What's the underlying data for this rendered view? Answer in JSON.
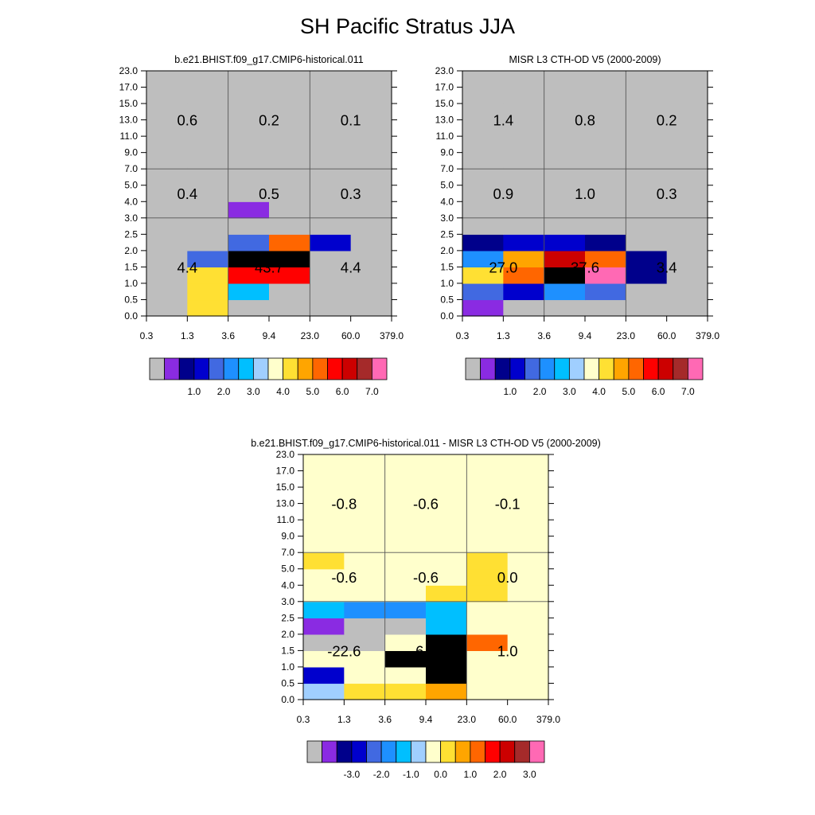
{
  "figure_title": "SH Pacific Stratus JJA",
  "chart_data": [
    {
      "type": "heatmap",
      "title": "b.e21.BHIST.f09_g17.CMIP6-historical.011",
      "x_tick_labels": [
        "0.3",
        "1.3",
        "3.6",
        "9.4",
        "23.0",
        "60.0",
        "379.0"
      ],
      "y_tick_labels": [
        "0.0",
        "0.5",
        "1.0",
        "1.5",
        "2.0",
        "2.5",
        "3.0",
        "4.0",
        "5.0",
        "7.0",
        "9.0",
        "11.0",
        "13.0",
        "15.0",
        "17.0",
        "23.0"
      ],
      "colorbar_labels": [
        "1.0",
        "2.0",
        "3.0",
        "4.0",
        "5.0",
        "6.0",
        "7.0"
      ],
      "color_bins": [
        [
          0,
          9,
          0,
          0,
          0,
          0
        ],
        [
          0,
          9,
          6,
          0,
          0,
          0
        ],
        [
          0,
          9,
          12,
          12,
          0,
          0
        ],
        [
          0,
          4,
          16,
          16,
          0,
          0
        ],
        [
          0,
          0,
          4,
          11,
          3,
          0
        ],
        [
          0,
          0,
          0,
          0,
          0,
          0
        ],
        [
          0,
          0,
          1,
          0,
          0,
          0
        ],
        [
          0,
          0,
          0,
          0,
          0,
          0
        ],
        [
          0,
          0,
          0,
          0,
          0,
          0
        ],
        [
          0,
          0,
          0,
          0,
          0,
          0
        ],
        [
          0,
          0,
          0,
          0,
          0,
          0
        ],
        [
          0,
          0,
          0,
          0,
          0,
          0
        ],
        [
          0,
          0,
          0,
          0,
          0,
          0
        ],
        [
          0,
          0,
          0,
          0,
          0,
          0
        ],
        [
          0,
          0,
          0,
          0,
          0,
          0
        ]
      ],
      "annotations": [
        {
          "x_range": [
            "0.3",
            "3.6"
          ],
          "y_range": [
            "7.0",
            "23.0"
          ],
          "text": "0.6"
        },
        {
          "x_range": [
            "3.6",
            "23.0"
          ],
          "y_range": [
            "7.0",
            "23.0"
          ],
          "text": "0.2"
        },
        {
          "x_range": [
            "23.0",
            "379.0"
          ],
          "y_range": [
            "7.0",
            "23.0"
          ],
          "text": "0.1"
        },
        {
          "x_range": [
            "0.3",
            "3.6"
          ],
          "y_range": [
            "3.0",
            "7.0"
          ],
          "text": "0.4"
        },
        {
          "x_range": [
            "3.6",
            "23.0"
          ],
          "y_range": [
            "3.0",
            "7.0"
          ],
          "text": "0.5"
        },
        {
          "x_range": [
            "23.0",
            "379.0"
          ],
          "y_range": [
            "3.0",
            "7.0"
          ],
          "text": "0.3"
        },
        {
          "x_range": [
            "0.3",
            "3.6"
          ],
          "y_range": [
            "0.0",
            "3.0"
          ],
          "text": "4.4"
        },
        {
          "x_range": [
            "3.6",
            "23.0"
          ],
          "y_range": [
            "0.0",
            "3.0"
          ],
          "text": "43.7"
        },
        {
          "x_range": [
            "23.0",
            "379.0"
          ],
          "y_range": [
            "0.0",
            "3.0"
          ],
          "text": "4.4"
        }
      ]
    },
    {
      "type": "heatmap",
      "title": "MISR L3 CTH-OD V5 (2000-2009)",
      "x_tick_labels": [
        "0.3",
        "1.3",
        "3.6",
        "9.4",
        "23.0",
        "60.0",
        "379.0"
      ],
      "y_tick_labels": [
        "0.0",
        "0.5",
        "1.0",
        "1.5",
        "2.0",
        "2.5",
        "3.0",
        "4.0",
        "5.0",
        "7.0",
        "9.0",
        "11.0",
        "13.0",
        "15.0",
        "17.0",
        "23.0"
      ],
      "colorbar_labels": [
        "1.0",
        "2.0",
        "3.0",
        "4.0",
        "5.0",
        "6.0",
        "7.0"
      ],
      "color_bins": [
        [
          1,
          0,
          0,
          0,
          0,
          0
        ],
        [
          4,
          3,
          5,
          4,
          0,
          0
        ],
        [
          9,
          11,
          16,
          15,
          2,
          0
        ],
        [
          5,
          10,
          13,
          11,
          2,
          0
        ],
        [
          2,
          3,
          3,
          2,
          0,
          0
        ],
        [
          0,
          0,
          0,
          0,
          0,
          0
        ],
        [
          0,
          0,
          0,
          0,
          0,
          0
        ],
        [
          0,
          0,
          0,
          0,
          0,
          0
        ],
        [
          0,
          0,
          0,
          0,
          0,
          0
        ],
        [
          0,
          0,
          0,
          0,
          0,
          0
        ],
        [
          0,
          0,
          0,
          0,
          0,
          0
        ],
        [
          0,
          0,
          0,
          0,
          0,
          0
        ],
        [
          0,
          0,
          0,
          0,
          0,
          0
        ],
        [
          0,
          0,
          0,
          0,
          0,
          0
        ],
        [
          0,
          0,
          0,
          0,
          0,
          0
        ]
      ],
      "annotations": [
        {
          "x_range": [
            "0.3",
            "3.6"
          ],
          "y_range": [
            "7.0",
            "23.0"
          ],
          "text": "1.4"
        },
        {
          "x_range": [
            "3.6",
            "23.0"
          ],
          "y_range": [
            "7.0",
            "23.0"
          ],
          "text": "0.8"
        },
        {
          "x_range": [
            "23.0",
            "379.0"
          ],
          "y_range": [
            "7.0",
            "23.0"
          ],
          "text": "0.2"
        },
        {
          "x_range": [
            "0.3",
            "3.6"
          ],
          "y_range": [
            "3.0",
            "7.0"
          ],
          "text": "0.9"
        },
        {
          "x_range": [
            "3.6",
            "23.0"
          ],
          "y_range": [
            "3.0",
            "7.0"
          ],
          "text": "1.0"
        },
        {
          "x_range": [
            "23.0",
            "379.0"
          ],
          "y_range": [
            "3.0",
            "7.0"
          ],
          "text": "0.3"
        },
        {
          "x_range": [
            "0.3",
            "3.6"
          ],
          "y_range": [
            "0.0",
            "3.0"
          ],
          "text": "27.0"
        },
        {
          "x_range": [
            "3.6",
            "23.0"
          ],
          "y_range": [
            "0.0",
            "3.0"
          ],
          "text": "37.6"
        },
        {
          "x_range": [
            "23.0",
            "379.0"
          ],
          "y_range": [
            "0.0",
            "3.0"
          ],
          "text": "3.4"
        }
      ]
    },
    {
      "type": "heatmap",
      "title": "b.e21.BHIST.f09_g17.CMIP6-historical.011 - MISR L3 CTH-OD V5 (2000-2009)",
      "x_tick_labels": [
        "0.3",
        "1.3",
        "3.6",
        "9.4",
        "23.0",
        "60.0",
        "379.0"
      ],
      "y_tick_labels": [
        "0.0",
        "0.5",
        "1.0",
        "1.5",
        "2.0",
        "2.5",
        "3.0",
        "4.0",
        "5.0",
        "7.0",
        "9.0",
        "11.0",
        "13.0",
        "15.0",
        "17.0",
        "23.0"
      ],
      "colorbar_labels": [
        "-3.0",
        "-2.0",
        "-1.0",
        "0.0",
        "1.0",
        "2.0",
        "3.0"
      ],
      "color_bins": [
        [
          7,
          9,
          9,
          10,
          8,
          8
        ],
        [
          3,
          8,
          8,
          16,
          8,
          8
        ],
        [
          8,
          8,
          16,
          16,
          8,
          8
        ],
        [
          0,
          0,
          8,
          16,
          11,
          8
        ],
        [
          1,
          0,
          0,
          6,
          8,
          8
        ],
        [
          6,
          5,
          5,
          6,
          8,
          8
        ],
        [
          8,
          8,
          8,
          9,
          9,
          8
        ],
        [
          8,
          8,
          8,
          8,
          9,
          8
        ],
        [
          9,
          8,
          8,
          8,
          9,
          8
        ],
        [
          8,
          8,
          8,
          8,
          8,
          8
        ],
        [
          8,
          8,
          8,
          8,
          8,
          8
        ],
        [
          8,
          8,
          8,
          8,
          8,
          8
        ],
        [
          8,
          8,
          8,
          8,
          8,
          8
        ],
        [
          8,
          8,
          8,
          8,
          8,
          8
        ],
        [
          8,
          8,
          8,
          8,
          8,
          8
        ]
      ],
      "annotations": [
        {
          "x_range": [
            "0.3",
            "3.6"
          ],
          "y_range": [
            "7.0",
            "23.0"
          ],
          "text": "-0.8"
        },
        {
          "x_range": [
            "3.6",
            "23.0"
          ],
          "y_range": [
            "7.0",
            "23.0"
          ],
          "text": "-0.6"
        },
        {
          "x_range": [
            "23.0",
            "379.0"
          ],
          "y_range": [
            "7.0",
            "23.0"
          ],
          "text": "-0.1"
        },
        {
          "x_range": [
            "0.3",
            "3.6"
          ],
          "y_range": [
            "3.0",
            "7.0"
          ],
          "text": "-0.6"
        },
        {
          "x_range": [
            "3.6",
            "23.0"
          ],
          "y_range": [
            "3.0",
            "7.0"
          ],
          "text": "-0.6"
        },
        {
          "x_range": [
            "23.0",
            "379.0"
          ],
          "y_range": [
            "3.0",
            "7.0"
          ],
          "text": "0.0"
        },
        {
          "x_range": [
            "0.3",
            "3.6"
          ],
          "y_range": [
            "0.0",
            "3.0"
          ],
          "text": "-22.6"
        },
        {
          "x_range": [
            "3.6",
            "23.0"
          ],
          "y_range": [
            "0.0",
            "3.0"
          ],
          "text": "6.1"
        },
        {
          "x_range": [
            "23.0",
            "379.0"
          ],
          "y_range": [
            "0.0",
            "3.0"
          ],
          "text": "1.0"
        }
      ]
    }
  ],
  "palette": [
    "#bebebe",
    "#8a2be2",
    "#00008b",
    "#0000cd",
    "#4169e1",
    "#1e90ff",
    "#00bfff",
    "#a0cfff",
    "#ffffcc",
    "#ffe033",
    "#ffa500",
    "#ff6600",
    "#ff0000",
    "#cc0000",
    "#a52a2a",
    "#ff69b4"
  ],
  "colors": {
    "divider_line": "#555555",
    "frame": "#000000"
  }
}
